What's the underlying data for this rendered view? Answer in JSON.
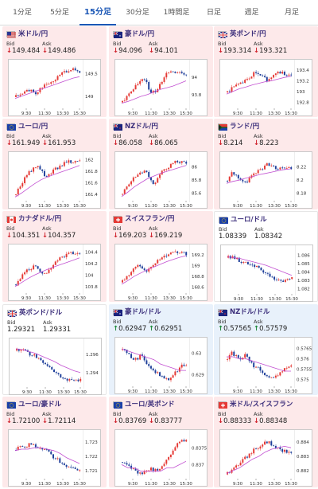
{
  "tabs": [
    "1分足",
    "5分足",
    "15分足",
    "30分足",
    "1時間足",
    "日足",
    "週足",
    "月足"
  ],
  "active_tab": "15分足",
  "labels": {
    "bid": "Bid",
    "ask": "Ask"
  },
  "colors": {
    "up_bg": "#fde9ea",
    "down_bg": "#e8f1fb",
    "up_arrow": "#1f8a3b",
    "down_arrow": "#d0242e",
    "bull": "#e53935",
    "bear": "#1e3f9a",
    "ma": "#c24fd1",
    "title": "#3a2d7a"
  },
  "panels": [
    {
      "title": "米ドル/円",
      "flag": "us-flag-icon",
      "bid": "149.484",
      "ask": "149.486",
      "direction": "down",
      "chart_data": {
        "type": "candlestick",
        "x_ticks": [
          "9:30",
          "11:30",
          "13:30",
          "15:30"
        ],
        "y_ticks": [
          "149.5",
          "149"
        ],
        "y_range": [
          148.75,
          149.7
        ],
        "trend": [
          149.0,
          149.05,
          149.1,
          149.15,
          149.05,
          149.1,
          149.25,
          149.3,
          149.35,
          149.4,
          149.5,
          149.55,
          149.6,
          149.58,
          149.55
        ],
        "ma": [
          148.95,
          149.0,
          149.05,
          149.1,
          149.15,
          149.2,
          149.25,
          149.3,
          149.35,
          149.4,
          149.43
        ]
      }
    },
    {
      "title": "豪ドル/円",
      "flag": "au-flag-icon",
      "bid": "94.096",
      "ask": "94.101",
      "direction": "down",
      "chart_data": {
        "type": "candlestick",
        "x_ticks": [
          "9:30",
          "11:30",
          "13:30",
          "15:30"
        ],
        "y_ticks": [
          "94",
          "93.8"
        ],
        "y_range": [
          93.65,
          94.15
        ],
        "trend": [
          93.72,
          93.78,
          93.85,
          93.9,
          93.95,
          93.98,
          93.85,
          93.82,
          93.88,
          94.0,
          94.05,
          94.08,
          94.06,
          94.04,
          94.03
        ],
        "ma": [
          93.7,
          93.72,
          93.75,
          93.78,
          93.8,
          93.83,
          93.86,
          93.88,
          93.9,
          93.93,
          93.96
        ]
      }
    },
    {
      "title": "英ポンド/円",
      "flag": "gb-flag-icon",
      "bid": "193.314",
      "ask": "193.321",
      "direction": "down",
      "chart_data": {
        "type": "candlestick",
        "x_ticks": [
          "9:30",
          "11:30",
          "13:30",
          "15:30"
        ],
        "y_ticks": [
          "193.4",
          "193.2",
          "193",
          "192.8"
        ],
        "y_range": [
          192.7,
          193.5
        ],
        "trend": [
          193.0,
          193.05,
          193.1,
          193.15,
          193.2,
          193.25,
          193.35,
          193.3,
          193.25,
          193.2,
          193.3,
          193.38,
          193.35,
          193.32,
          193.3
        ],
        "ma": [
          192.95,
          193.0,
          193.05,
          193.08,
          193.12,
          193.15,
          193.18,
          193.2,
          193.23,
          193.26,
          193.28
        ]
      }
    },
    {
      "title": "ユーロ/円",
      "flag": "eu-flag-icon",
      "bid": "161.949",
      "ask": "161.953",
      "direction": "down",
      "chart_data": {
        "type": "candlestick",
        "x_ticks": [
          "9:30",
          "11:30",
          "13:30",
          "15:30"
        ],
        "y_ticks": [
          "162",
          "161.8",
          "161.6",
          "161.4"
        ],
        "y_range": [
          161.3,
          162.05
        ],
        "trend": [
          161.4,
          161.55,
          161.7,
          161.8,
          161.85,
          161.9,
          161.75,
          161.7,
          161.8,
          161.85,
          161.9,
          161.95,
          161.97,
          161.98,
          161.96
        ],
        "ma": [
          161.35,
          161.42,
          161.5,
          161.58,
          161.65,
          161.7,
          161.74,
          161.78,
          161.82,
          161.86,
          161.9
        ]
      }
    },
    {
      "title": "NZドル/円",
      "flag": "nz-flag-icon",
      "bid": "86.058",
      "ask": "86.065",
      "direction": "down",
      "chart_data": {
        "type": "candlestick",
        "x_ticks": [
          "9:30",
          "11:30",
          "13:30",
          "15:30"
        ],
        "y_ticks": [
          "86",
          "85.8",
          "85.6"
        ],
        "y_range": [
          85.5,
          86.15
        ],
        "trend": [
          85.6,
          85.7,
          85.8,
          85.85,
          85.9,
          85.95,
          85.8,
          85.75,
          85.85,
          85.95,
          86.0,
          86.05,
          86.08,
          86.07,
          86.06
        ],
        "ma": [
          85.55,
          85.62,
          85.7,
          85.76,
          85.82,
          85.86,
          85.9,
          85.93,
          85.96,
          85.99,
          86.02
        ]
      }
    },
    {
      "title": "ランド/円",
      "flag": "za-flag-icon",
      "bid": "8.214",
      "ask": "8.223",
      "direction": "down",
      "chart_data": {
        "type": "candlestick",
        "x_ticks": [
          "9:30",
          "11:30",
          "13:30",
          "15:30"
        ],
        "y_ticks": [
          "8.22",
          "8.2",
          "8.18"
        ],
        "y_range": [
          8.17,
          8.235
        ],
        "trend": [
          8.2,
          8.21,
          8.205,
          8.2,
          8.195,
          8.205,
          8.21,
          8.215,
          8.22,
          8.225,
          8.22,
          8.215,
          8.218,
          8.22,
          8.216
        ],
        "ma": [
          8.195,
          8.198,
          8.2,
          8.203,
          8.205,
          8.208,
          8.21,
          8.212,
          8.214,
          8.216,
          8.217
        ]
      }
    },
    {
      "title": "カナダドル/円",
      "flag": "ca-flag-icon",
      "bid": "104.351",
      "ask": "104.357",
      "direction": "down",
      "chart_data": {
        "type": "candlestick",
        "x_ticks": [
          "9:30",
          "11:30",
          "13:30",
          "15:30"
        ],
        "y_ticks": [
          "104.4",
          "104.2",
          "104",
          "103.8"
        ],
        "y_range": [
          103.7,
          104.45
        ],
        "trend": [
          103.85,
          103.95,
          104.05,
          104.1,
          104.15,
          104.1,
          104.0,
          104.05,
          104.15,
          104.25,
          104.3,
          104.35,
          104.38,
          104.37,
          104.35
        ],
        "ma": [
          103.8,
          103.87,
          103.94,
          104.0,
          104.05,
          104.1,
          104.14,
          104.18,
          104.22,
          104.26,
          104.3
        ]
      }
    },
    {
      "title": "スイスフラン/円",
      "flag": "ch-flag-icon",
      "bid": "169.203",
      "ask": "169.219",
      "direction": "down",
      "chart_data": {
        "type": "candlestick",
        "x_ticks": [
          "9:30",
          "11:30",
          "13:30",
          "15:30"
        ],
        "y_ticks": [
          "169.2",
          "169",
          "168.8",
          "168.6"
        ],
        "y_range": [
          168.5,
          169.3
        ],
        "trend": [
          168.7,
          168.8,
          168.9,
          169.0,
          168.95,
          168.9,
          168.95,
          169.05,
          169.1,
          169.15,
          169.2,
          169.22,
          169.25,
          169.23,
          169.21
        ],
        "ma": [
          168.65,
          168.72,
          168.8,
          168.86,
          168.92,
          168.97,
          169.02,
          169.07,
          169.11,
          169.15,
          169.18
        ]
      }
    },
    {
      "title": "ユーロ/ドル",
      "flag": "eu-flag-icon",
      "bid": "1.08339",
      "ask": "1.08342",
      "direction": "none",
      "chart_data": {
        "type": "candlestick",
        "x_ticks": [
          "9:30",
          "11:30",
          "13:30",
          "15:30"
        ],
        "y_ticks": [
          "1.086",
          "1.085",
          "1.084",
          "1.083",
          "1.082"
        ],
        "y_range": [
          1.0815,
          1.0866
        ],
        "trend": [
          1.0858,
          1.0857,
          1.0855,
          1.0852,
          1.085,
          1.0848,
          1.0846,
          1.0843,
          1.084,
          1.0836,
          1.0832,
          1.0829,
          1.0828,
          1.0833,
          1.0834
        ],
        "ma": [
          1.0858,
          1.0857,
          1.0856,
          1.0854,
          1.0852,
          1.085,
          1.0848,
          1.0845,
          1.0842,
          1.0839,
          1.0836
        ]
      }
    },
    {
      "title": "英ポンド/ドル",
      "flag": "gb-flag-icon",
      "bid": "1.29321",
      "ask": "1.29331",
      "direction": "none",
      "chart_data": {
        "type": "candlestick",
        "x_ticks": [
          "9:30",
          "11:30",
          "13:30",
          "15:30"
        ],
        "y_ticks": [
          "1.296",
          "1.294"
        ],
        "y_range": [
          1.2925,
          1.2972
        ],
        "trend": [
          1.2965,
          1.2966,
          1.2964,
          1.296,
          1.2958,
          1.2955,
          1.295,
          1.2946,
          1.2942,
          1.2938,
          1.2935,
          1.2933,
          1.2931,
          1.2932,
          1.2932
        ],
        "ma": [
          1.2966,
          1.2965,
          1.2963,
          1.2961,
          1.2958,
          1.2955,
          1.2952,
          1.2948,
          1.2945,
          1.2942,
          1.294
        ]
      }
    },
    {
      "title": "豪ドル/ドル",
      "flag": "au-flag-icon",
      "bid": "0.62947",
      "ask": "0.62951",
      "direction": "up",
      "chart_data": {
        "type": "candlestick",
        "x_ticks": [
          "9:30",
          "11:30",
          "13:30",
          "15:30"
        ],
        "y_ticks": [
          "0.63",
          "0.629"
        ],
        "y_range": [
          0.6285,
          0.6305
        ],
        "trend": [
          0.6302,
          0.63,
          0.6298,
          0.6297,
          0.6299,
          0.6296,
          0.6294,
          0.6292,
          0.629,
          0.6289,
          0.6288,
          0.629,
          0.6292,
          0.6294,
          0.6295
        ],
        "ma": [
          0.6302,
          0.6301,
          0.63,
          0.6299,
          0.6298,
          0.6297,
          0.6295,
          0.6294,
          0.6293,
          0.6292,
          0.6292
        ]
      }
    },
    {
      "title": "NZドル/ドル",
      "flag": "nz-flag-icon",
      "bid": "0.57565",
      "ask": "0.57579",
      "direction": "up",
      "chart_data": {
        "type": "candlestick",
        "x_ticks": [
          "9:30",
          "11:30",
          "13:30",
          "15:30"
        ],
        "y_ticks": [
          "0.5765",
          "0.576",
          "0.5755",
          "0.575"
        ],
        "y_range": [
          0.5747,
          0.5768
        ],
        "trend": [
          0.576,
          0.5763,
          0.5761,
          0.5759,
          0.5762,
          0.5758,
          0.5756,
          0.5755,
          0.5753,
          0.5751,
          0.575,
          0.5752,
          0.5754,
          0.5756,
          0.5757
        ],
        "ma": [
          0.5761,
          0.5761,
          0.576,
          0.576,
          0.5759,
          0.5758,
          0.5757,
          0.5756,
          0.5755,
          0.5754,
          0.5754
        ]
      }
    },
    {
      "title": "ユーロ/豪ドル",
      "flag": "eu-flag-icon",
      "bid": "1.72100",
      "ask": "1.72114",
      "direction": "down",
      "chart_data": {
        "type": "candlestick",
        "x_ticks": [
          "9:30",
          "11:30",
          "13:30",
          "15:30"
        ],
        "y_ticks": [
          "1.723",
          "1.722",
          "1.721"
        ],
        "y_range": [
          1.7205,
          1.7235
        ],
        "trend": [
          1.7225,
          1.7228,
          1.7226,
          1.7229,
          1.7227,
          1.7225,
          1.7226,
          1.7224,
          1.722,
          1.7218,
          1.7215,
          1.7213,
          1.7212,
          1.7211,
          1.721
        ],
        "ma": [
          1.7224,
          1.7225,
          1.7225,
          1.7226,
          1.7226,
          1.7225,
          1.7224,
          1.7222,
          1.7219,
          1.7217,
          1.7215
        ]
      }
    },
    {
      "title": "ユーロ/英ポンド",
      "flag": "eu-flag-icon",
      "bid": "0.83769",
      "ask": "0.83777",
      "direction": "down",
      "chart_data": {
        "type": "candlestick",
        "x_ticks": [
          "9:30",
          "11:30",
          "13:30",
          "15:30"
        ],
        "y_ticks": [
          "0.8375",
          "0.837"
        ],
        "y_range": [
          0.8366,
          0.8379
        ],
        "trend": [
          0.8371,
          0.837,
          0.8369,
          0.8368,
          0.8367,
          0.8368,
          0.8369,
          0.8368,
          0.8369,
          0.837,
          0.8372,
          0.8374,
          0.8376,
          0.8377,
          0.8377
        ],
        "ma": [
          0.837,
          0.8369,
          0.8369,
          0.8368,
          0.8368,
          0.8368,
          0.8368,
          0.8369,
          0.8369,
          0.837,
          0.8371
        ]
      }
    },
    {
      "title": "米ドル/スイスフラン",
      "flag": "ch-flag-icon",
      "bid": "0.88333",
      "ask": "0.88348",
      "direction": "down",
      "chart_data": {
        "type": "candlestick",
        "x_ticks": [
          "9:30",
          "11:30",
          "13:30",
          "15:30"
        ],
        "y_ticks": [
          "0.884",
          "0.883",
          "0.882"
        ],
        "y_range": [
          0.8815,
          0.8845
        ],
        "trend": [
          0.8818,
          0.882,
          0.8823,
          0.8826,
          0.8829,
          0.8832,
          0.8835,
          0.8837,
          0.8839,
          0.884,
          0.8838,
          0.8836,
          0.8834,
          0.8833,
          0.8833
        ],
        "ma": [
          0.8818,
          0.882,
          0.8822,
          0.8825,
          0.8828,
          0.883,
          0.8833,
          0.8835,
          0.8836,
          0.8837,
          0.8836
        ]
      }
    }
  ]
}
